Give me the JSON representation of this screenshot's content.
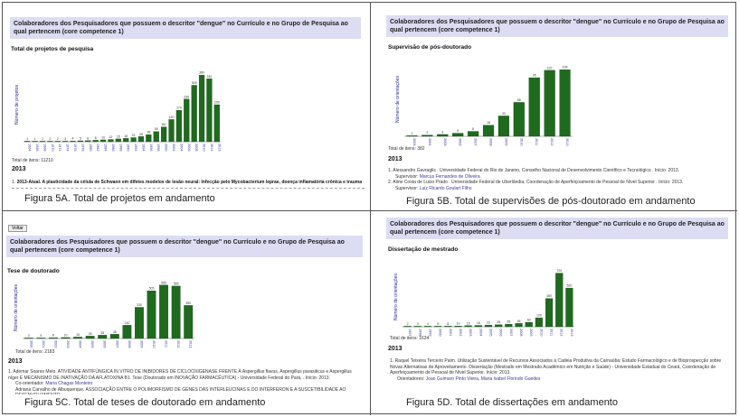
{
  "header_text": "Colaboradores dos Pesquisadores que possuem o descritor \"dengue\" no Currículo e no Grupo de Pesquisa ao qual pertencem (core competence 1)",
  "voltar": "Voltar",
  "panels": {
    "A": {
      "section": "Total de projetos de pesquisa",
      "ylabel": "Número de projetos",
      "total": "Total de itens: 11210",
      "year": "2013",
      "item1_num": "1.",
      "item1_text": "2013-Atual. A plasticidade da célula de Schwann em difetes modelos de lesão neural: Infecção pelo Mycobacterium leprae, doença inflamatória crônica e trauma",
      "caption": "Figura 5A. Total de projetos em andamento"
    },
    "B": {
      "section": "Supervisão de pós-doutorado",
      "ylabel": "Número de orientações",
      "total": "Total de itens: 382",
      "year": "2013",
      "item1_num": "1.",
      "item1_text": "Alessandro Gavraglis . Universidade Federal do Rio de Janeiro, Conselho Nacional de Desenvolvimento Científico e Tecnológico . Início: 2013.",
      "item1_sub_label": "Supervisor:",
      "item1_sub": "Marcus Fernandes de Oliveira",
      "item2_num": "2.",
      "item2_text": "Aline Costa de Lucio Prado . Universidade Federal de Uberlândia, Coordenação de Aperfeiçoamento de Pessoal de Nível Superior . Início: 2013.",
      "item2_sub_label": "Supervisor:",
      "item2_sub": "Luiz Ricardo Goulart Filho",
      "caption": "Figura 5B. Total de supervisões de pós-doutorado em andamento"
    },
    "C": {
      "section": "Tese de doutorado",
      "ylabel": "Número de orientações",
      "total": "Total de itens: 2183",
      "year": "2013",
      "item1_num": "1.",
      "item1_text": "Ademar Soares Melo. ATIVIDADE ANTIFÚNGICA IN VITRO DE INIBIDORES DE CICLOOXIGENASE FRENTE À Aspergillus flavus, Aspergillus parasiticus e Aspergillus níger E MECANISMO DE INATIVAÇÃO DA AFLATOXINA B1. Tese (Doutorado em INOVAÇÃO FARMACÊUTICA) - Universidade Federal do Pará, . Início: 2013.",
      "item1_sub_label": "Co-orientador:",
      "item1_sub": "Maria Chagas Monteiro",
      "item2_text": "Adriana Carvalho de Albuquerque. ASSOCIAÇÃO ENTRE O POLIMORFISMO DE GENES DAS INTERLEUCINAS E DO INTERFERON E A SUSCETIBILIDADE AO DESENVOLVIMENTO",
      "caption": "Figura 5C. Total de teses de doutorado em andamento"
    },
    "D": {
      "section": "Dissertação de mestrado",
      "ylabel": "Número de orientações",
      "total": "Total de itens: 1634",
      "year": "2013",
      "item1_num": "1.",
      "item1_text": "Raquel Teixeira Terceiro Paim. Utilização Sustentável de Recursos Associados à Cadeia Produtiva da Carnaúba: Estudo Farmacológico e de Bioprospecção sobre Novas Alternativas de Aproveitamento. Dissertação (Mestrado em Mestrado Acadêmico em Nutrição e Saúde) - Universidade Estadual do Ceará, Coordenação de Aperfeiçoamento de Pessoal de Nível Superior. Início: 2013.",
      "item1_sub_label": "Orientadores:",
      "item1_sub": "Joao Guimaro Pinto Vieira, Maria Isabel Florindo Guedes",
      "caption": "Figura 5D. Total de dissertações em andamento"
    }
  },
  "chart_data": [
    {
      "type": "bar",
      "panel": "A",
      "title": "Total de projetos de pesquisa",
      "ylabel": "Número de projetos",
      "color": "#1e6b1e",
      "categories": [
        "1964",
        "1966",
        "1968",
        "1970",
        "1972",
        "1974",
        "1976",
        "1978",
        "1980",
        "1982",
        "1984",
        "1986",
        "1988",
        "1990",
        "1992",
        "1994",
        "1996",
        "1998",
        "2000",
        "2002",
        "2004",
        "2006",
        "2008",
        "2010",
        "2012",
        "2013"
      ],
      "values": [
        1,
        1,
        1,
        2,
        2,
        3,
        4,
        5,
        6,
        8,
        10,
        12,
        15,
        18,
        22,
        28,
        38,
        55,
        80,
        120,
        170,
        230,
        305,
        360,
        340,
        200
      ],
      "ylim": [
        0,
        400
      ]
    },
    {
      "type": "bar",
      "panel": "B",
      "title": "Supervisão de pós-doutorado",
      "ylabel": "Número de orientações",
      "color": "#1e6b1e",
      "categories": [
        "2003",
        "2004",
        "2005",
        "2006",
        "2007",
        "2008",
        "2009",
        "2010",
        "2011",
        "2012",
        "2013"
      ],
      "values": [
        1,
        2,
        3,
        5,
        8,
        18,
        33,
        55,
        95,
        107,
        108
      ],
      "ylim": [
        0,
        120
      ]
    },
    {
      "type": "bar",
      "panel": "C",
      "title": "Tese de doutorado",
      "ylabel": "Número de orientações",
      "color": "#1e6b1e",
      "categories": [
        "2000",
        "2001",
        "2002",
        "2003",
        "2004",
        "2005",
        "2006",
        "2007",
        "2008",
        "2009",
        "2010",
        "2011",
        "2012",
        "2013"
      ],
      "values": [
        3,
        5,
        8,
        10,
        15,
        25,
        35,
        45,
        140,
        330,
        505,
        565,
        555,
        350
      ],
      "ylim": [
        0,
        650
      ]
    },
    {
      "type": "bar",
      "panel": "D",
      "title": "Dissertação de mestrado",
      "ylabel": "Número de orientações",
      "color": "#1e6b1e",
      "categories": [
        "1997",
        "1998",
        "1999",
        "2000",
        "2001",
        "2002",
        "2003",
        "2004",
        "2005",
        "2006",
        "2007",
        "2008",
        "2009",
        "2010",
        "2011",
        "2012",
        "2013"
      ],
      "values": [
        2,
        3,
        4,
        5,
        8,
        10,
        15,
        18,
        22,
        28,
        35,
        45,
        60,
        120,
        380,
        720,
        520
      ],
      "ylim": [
        0,
        800
      ]
    }
  ]
}
